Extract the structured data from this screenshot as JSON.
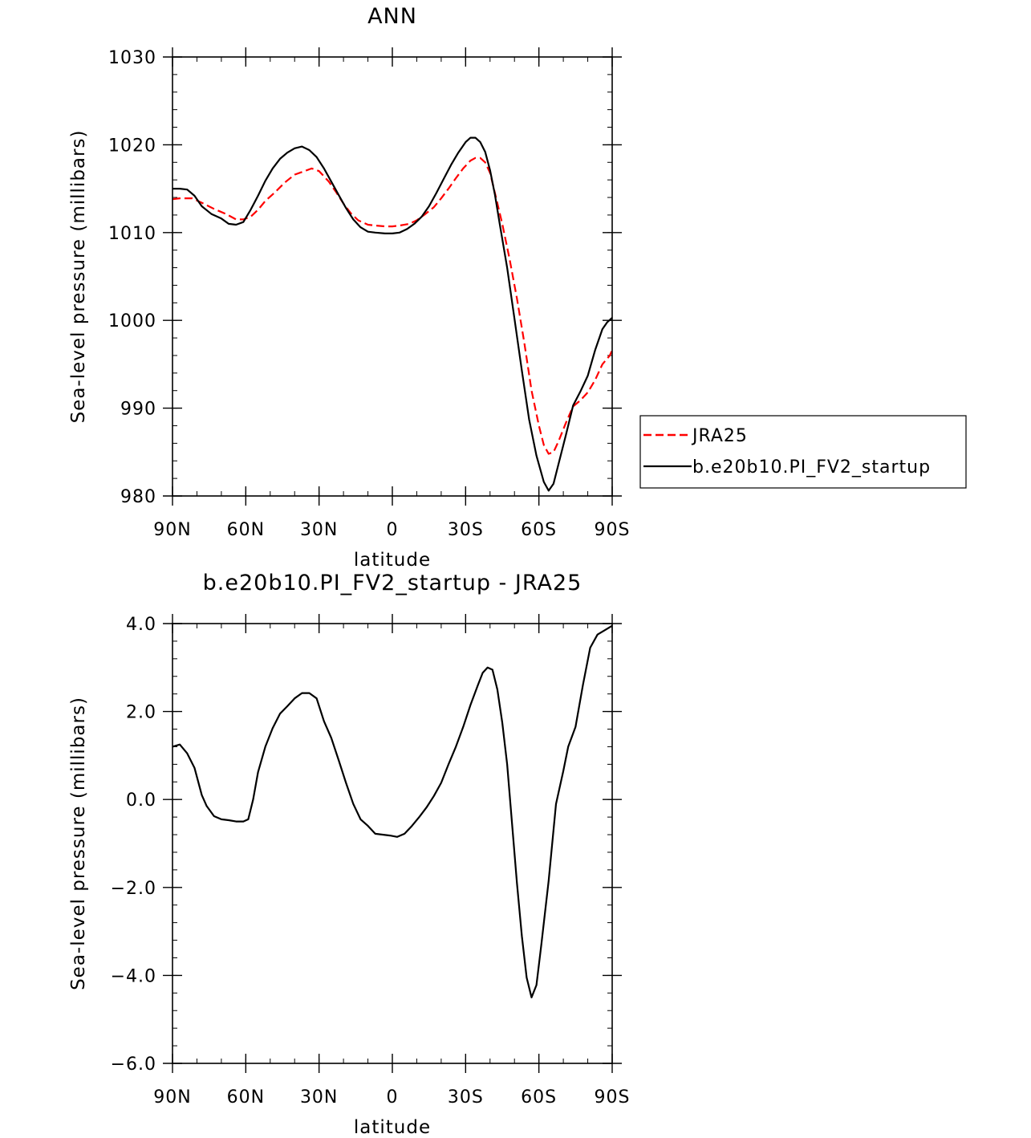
{
  "chart_data": [
    {
      "type": "line",
      "title": "ANN",
      "xlabel": "latitude",
      "ylabel": "Sea-level pressure (millibars)",
      "xlim": [
        90,
        -90
      ],
      "ylim": [
        980,
        1030
      ],
      "xticks": [
        {
          "value": 90,
          "label": "90N"
        },
        {
          "value": 60,
          "label": "60N"
        },
        {
          "value": 30,
          "label": "30N"
        },
        {
          "value": 0,
          "label": "0"
        },
        {
          "value": -30,
          "label": "30S"
        },
        {
          "value": -60,
          "label": "60S"
        },
        {
          "value": -90,
          "label": "90S"
        }
      ],
      "yticks": [
        {
          "value": 1030,
          "label": "1030"
        },
        {
          "value": 1020,
          "label": "1020"
        },
        {
          "value": 1010,
          "label": "1010"
        },
        {
          "value": 1000,
          "label": "1000"
        },
        {
          "value": 990,
          "label": "990"
        },
        {
          "value": 980,
          "label": "980"
        }
      ],
      "legend_position": "right",
      "series": [
        {
          "name": "JRA25",
          "color": "#ff0000",
          "dash": true,
          "points": [
            [
              90,
              1013.8
            ],
            [
              87,
              1013.9
            ],
            [
              82,
              1013.9
            ],
            [
              78,
              1013.4
            ],
            [
              73,
              1012.7
            ],
            [
              68,
              1012.1
            ],
            [
              64,
              1011.5
            ],
            [
              61,
              1011.5
            ],
            [
              58,
              1011.8
            ],
            [
              55,
              1012.6
            ],
            [
              52,
              1013.6
            ],
            [
              48,
              1014.6
            ],
            [
              44,
              1015.7
            ],
            [
              40,
              1016.6
            ],
            [
              37,
              1016.9
            ],
            [
              33,
              1017.3
            ],
            [
              30,
              1017.0
            ],
            [
              26,
              1015.8
            ],
            [
              23,
              1014.6
            ],
            [
              20,
              1013.3
            ],
            [
              17,
              1012.2
            ],
            [
              14,
              1011.4
            ],
            [
              10,
              1010.9
            ],
            [
              7,
              1010.8
            ],
            [
              3,
              1010.7
            ],
            [
              0,
              1010.7
            ],
            [
              -3,
              1010.8
            ],
            [
              -7,
              1011.0
            ],
            [
              -10,
              1011.4
            ],
            [
              -13,
              1012.0
            ],
            [
              -17,
              1012.9
            ],
            [
              -20,
              1013.9
            ],
            [
              -23,
              1015.0
            ],
            [
              -26,
              1016.2
            ],
            [
              -29,
              1017.3
            ],
            [
              -32,
              1018.2
            ],
            [
              -34,
              1018.5
            ],
            [
              -36,
              1018.5
            ],
            [
              -38,
              1018.0
            ],
            [
              -40,
              1016.8
            ],
            [
              -42,
              1014.5
            ],
            [
              -45,
              1011.0
            ],
            [
              -48,
              1007.0
            ],
            [
              -51,
              1002.5
            ],
            [
              -54,
              997.5
            ],
            [
              -57,
              992.0
            ],
            [
              -60,
              988.0
            ],
            [
              -62,
              985.8
            ],
            [
              -64,
              984.8
            ],
            [
              -66,
              985.0
            ],
            [
              -68,
              986.2
            ],
            [
              -71,
              988.3
            ],
            [
              -74,
              990.2
            ],
            [
              -77,
              990.9
            ],
            [
              -80,
              991.8
            ],
            [
              -83,
              993.2
            ],
            [
              -86,
              995.0
            ],
            [
              -89,
              996.0
            ],
            [
              -90,
              996.6
            ]
          ]
        },
        {
          "name": "b.e20b10.PI_FV2_startup",
          "color": "#000000",
          "dash": false,
          "points": [
            [
              90,
              1015.0
            ],
            [
              87,
              1015.0
            ],
            [
              84,
              1014.9
            ],
            [
              81,
              1014.2
            ],
            [
              78,
              1013.0
            ],
            [
              74,
              1012.1
            ],
            [
              70,
              1011.6
            ],
            [
              67,
              1011.0
            ],
            [
              64,
              1010.9
            ],
            [
              61,
              1011.2
            ],
            [
              58,
              1012.6
            ],
            [
              55,
              1014.2
            ],
            [
              52,
              1015.9
            ],
            [
              49,
              1017.3
            ],
            [
              46,
              1018.4
            ],
            [
              43,
              1019.1
            ],
            [
              40,
              1019.6
            ],
            [
              37,
              1019.8
            ],
            [
              34,
              1019.4
            ],
            [
              31,
              1018.6
            ],
            [
              28,
              1017.3
            ],
            [
              25,
              1015.8
            ],
            [
              22,
              1014.3
            ],
            [
              19,
              1012.8
            ],
            [
              16,
              1011.5
            ],
            [
              13,
              1010.6
            ],
            [
              10,
              1010.1
            ],
            [
              7,
              1010.0
            ],
            [
              3,
              1009.9
            ],
            [
              0,
              1009.9
            ],
            [
              -3,
              1010.0
            ],
            [
              -6,
              1010.4
            ],
            [
              -9,
              1011.0
            ],
            [
              -12,
              1011.8
            ],
            [
              -15,
              1013.0
            ],
            [
              -18,
              1014.5
            ],
            [
              -21,
              1016.1
            ],
            [
              -24,
              1017.7
            ],
            [
              -27,
              1019.1
            ],
            [
              -30,
              1020.3
            ],
            [
              -32,
              1020.8
            ],
            [
              -34,
              1020.8
            ],
            [
              -36,
              1020.3
            ],
            [
              -38,
              1019.2
            ],
            [
              -40,
              1017.1
            ],
            [
              -42,
              1014.3
            ],
            [
              -44,
              1010.9
            ],
            [
              -47,
              1006.0
            ],
            [
              -50,
              1000.2
            ],
            [
              -53,
              994.3
            ],
            [
              -56,
              988.7
            ],
            [
              -59,
              984.6
            ],
            [
              -62,
              981.6
            ],
            [
              -64,
              980.6
            ],
            [
              -66,
              981.4
            ],
            [
              -68,
              983.6
            ],
            [
              -71,
              986.9
            ],
            [
              -74,
              990.3
            ],
            [
              -77,
              991.9
            ],
            [
              -80,
              993.7
            ],
            [
              -83,
              996.6
            ],
            [
              -86,
              999.0
            ],
            [
              -88,
              999.8
            ],
            [
              -90,
              1000.3
            ]
          ]
        }
      ]
    },
    {
      "type": "line",
      "title": "b.e20b10.PI_FV2_startup - JRA25",
      "xlabel": "latitude",
      "ylabel": "Sea-level pressure (millibars)",
      "xlim": [
        90,
        -90
      ],
      "ylim": [
        -6,
        4
      ],
      "xticks": [
        {
          "value": 90,
          "label": "90N"
        },
        {
          "value": 60,
          "label": "60N"
        },
        {
          "value": 30,
          "label": "30N"
        },
        {
          "value": 0,
          "label": "0"
        },
        {
          "value": -30,
          "label": "30S"
        },
        {
          "value": -60,
          "label": "60S"
        },
        {
          "value": -90,
          "label": "90S"
        }
      ],
      "yticks": [
        {
          "value": 4,
          "label": "4.0"
        },
        {
          "value": 2,
          "label": "2.0"
        },
        {
          "value": 0,
          "label": "0.0"
        },
        {
          "value": -2,
          "label": "−2.0"
        },
        {
          "value": -4,
          "label": "−4.0"
        },
        {
          "value": -6,
          "label": "−6.0"
        }
      ],
      "series": [
        {
          "color": "#000000",
          "dash": false,
          "points": [
            [
              90,
              1.2
            ],
            [
              87,
              1.25
            ],
            [
              84,
              1.05
            ],
            [
              81,
              0.72
            ],
            [
              78,
              0.1
            ],
            [
              76,
              -0.15
            ],
            [
              73,
              -0.38
            ],
            [
              70,
              -0.45
            ],
            [
              67,
              -0.47
            ],
            [
              64,
              -0.5
            ],
            [
              61,
              -0.5
            ],
            [
              59,
              -0.45
            ],
            [
              57,
              0.0
            ],
            [
              55,
              0.62
            ],
            [
              52,
              1.2
            ],
            [
              49,
              1.62
            ],
            [
              46,
              1.95
            ],
            [
              43,
              2.12
            ],
            [
              40,
              2.3
            ],
            [
              37,
              2.42
            ],
            [
              34,
              2.42
            ],
            [
              31,
              2.3
            ],
            [
              28,
              1.78
            ],
            [
              25,
              1.4
            ],
            [
              22,
              0.9
            ],
            [
              19,
              0.38
            ],
            [
              16,
              -0.1
            ],
            [
              13,
              -0.45
            ],
            [
              10,
              -0.6
            ],
            [
              7,
              -0.78
            ],
            [
              4,
              -0.8
            ],
            [
              1,
              -0.82
            ],
            [
              -2,
              -0.85
            ],
            [
              -5,
              -0.78
            ],
            [
              -8,
              -0.6
            ],
            [
              -11,
              -0.4
            ],
            [
              -14,
              -0.18
            ],
            [
              -17,
              0.08
            ],
            [
              -20,
              0.38
            ],
            [
              -23,
              0.8
            ],
            [
              -26,
              1.2
            ],
            [
              -29,
              1.65
            ],
            [
              -32,
              2.15
            ],
            [
              -35,
              2.6
            ],
            [
              -37,
              2.88
            ],
            [
              -39,
              3.0
            ],
            [
              -41,
              2.95
            ],
            [
              -43,
              2.5
            ],
            [
              -45,
              1.75
            ],
            [
              -47,
              0.8
            ],
            [
              -49,
              -0.55
            ],
            [
              -51,
              -1.9
            ],
            [
              -53,
              -3.1
            ],
            [
              -55,
              -4.05
            ],
            [
              -57,
              -4.5
            ],
            [
              -59,
              -4.22
            ],
            [
              -61,
              -3.3
            ],
            [
              -64,
              -1.85
            ],
            [
              -67,
              -0.1
            ],
            [
              -70,
              0.65
            ],
            [
              -72,
              1.2
            ],
            [
              -75,
              1.65
            ],
            [
              -78,
              2.6
            ],
            [
              -81,
              3.45
            ],
            [
              -84,
              3.75
            ],
            [
              -87,
              3.85
            ],
            [
              -90,
              3.95
            ]
          ]
        }
      ]
    }
  ]
}
